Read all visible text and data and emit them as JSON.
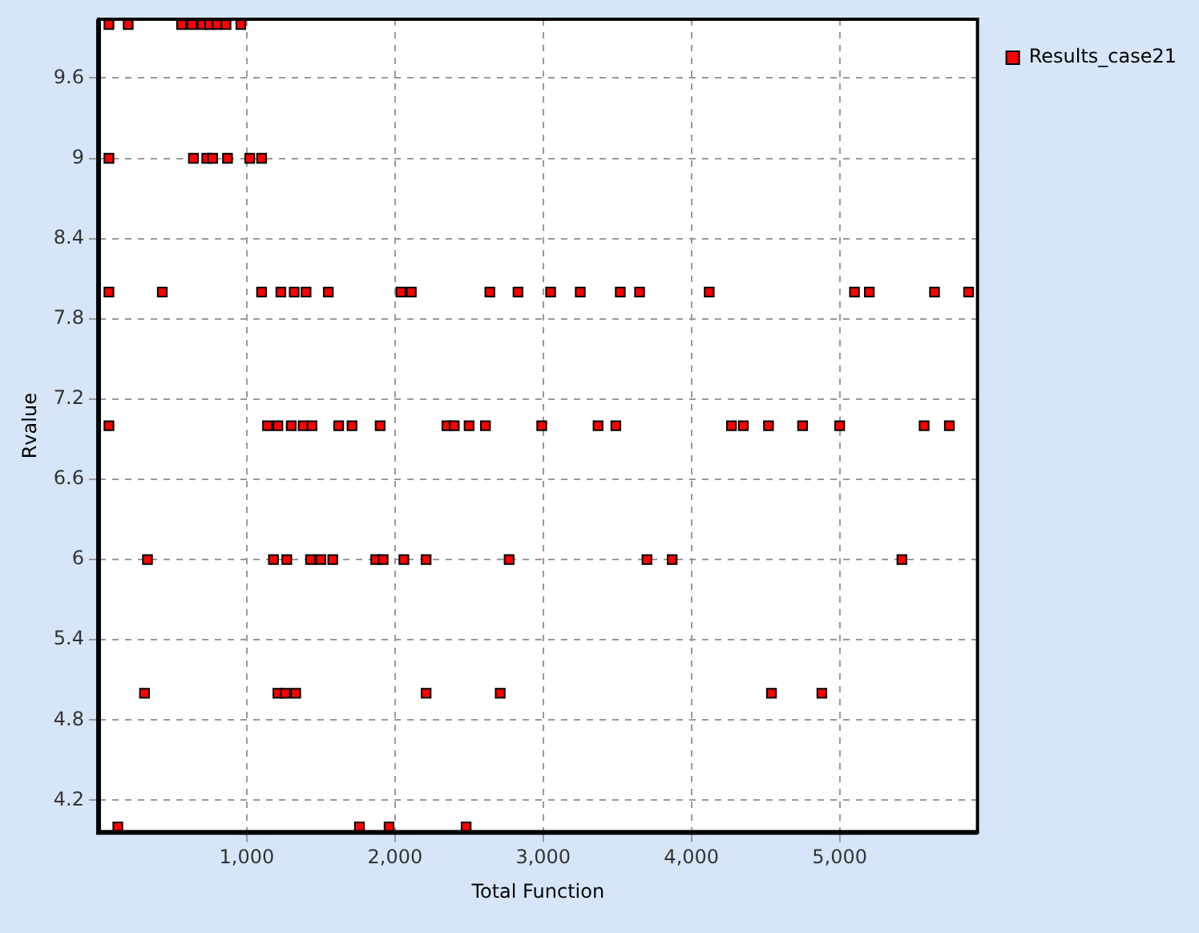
{
  "chart_data": {
    "type": "scatter",
    "xlabel": "Total Function",
    "ylabel": "Rvalue",
    "x": [
      70,
      200,
      560,
      630,
      700,
      750,
      800,
      860,
      960,
      70,
      640,
      730,
      770,
      870,
      1020,
      1100,
      70,
      430,
      1100,
      1230,
      1320,
      1400,
      1550,
      2040,
      2110,
      2640,
      2830,
      3050,
      3250,
      3520,
      3650,
      4120,
      5100,
      5200,
      5640,
      5870,
      70,
      1140,
      1210,
      1300,
      1380,
      1440,
      1620,
      1710,
      1900,
      2350,
      2400,
      2500,
      2610,
      2990,
      3370,
      3490,
      4270,
      4350,
      4520,
      4750,
      5000,
      5570,
      5740,
      330,
      1180,
      1270,
      1430,
      1500,
      1580,
      1870,
      1920,
      2060,
      2210,
      2770,
      3700,
      3870,
      5420,
      310,
      1210,
      1260,
      1330,
      2210,
      2710,
      4540,
      4880,
      130,
      1760,
      1960,
      2480
    ],
    "series": [
      {
        "name": "Results_case21",
        "color": "#ff0000",
        "values": [
          10,
          10,
          10,
          10,
          10,
          10,
          10,
          10,
          10,
          9,
          9,
          9,
          9,
          9,
          9,
          9,
          8,
          8,
          8,
          8,
          8,
          8,
          8,
          8,
          8,
          8,
          8,
          8,
          8,
          8,
          8,
          8,
          8,
          8,
          8,
          8,
          7,
          7,
          7,
          7,
          7,
          7,
          7,
          7,
          7,
          7,
          7,
          7,
          7,
          7,
          7,
          7,
          7,
          7,
          7,
          7,
          7,
          7,
          7,
          6,
          6,
          6,
          6,
          6,
          6,
          6,
          6,
          6,
          6,
          6,
          6,
          6,
          6,
          5,
          5,
          5,
          5,
          5,
          5,
          5,
          5,
          4,
          4,
          4,
          4
        ]
      }
    ],
    "xlim": [
      0,
      5930
    ],
    "ylim": [
      3.96,
      10.04
    ],
    "xticks": [
      {
        "value": 1000,
        "label": "1,000"
      },
      {
        "value": 2000,
        "label": "2,000"
      },
      {
        "value": 3000,
        "label": "3,000"
      },
      {
        "value": 4000,
        "label": "4,000"
      },
      {
        "value": 5000,
        "label": "5,000"
      }
    ],
    "yticks": [
      4.2,
      4.8,
      5.4,
      6,
      6.6,
      7.2,
      7.8,
      8.4,
      9,
      9.6
    ],
    "grid": true,
    "legend": "top right",
    "marker": "square"
  }
}
